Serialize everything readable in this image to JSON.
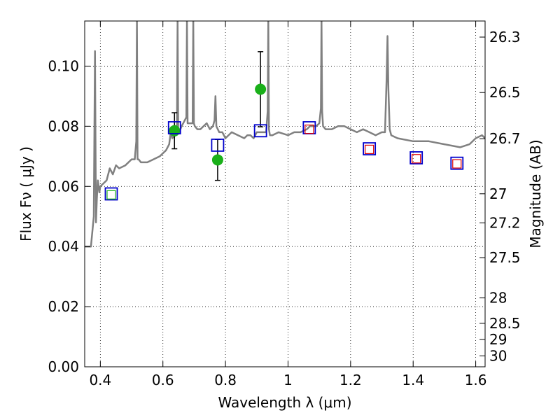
{
  "chart_data": {
    "type": "scatter",
    "xlabel": "Wavelength  λ (μm)",
    "ylabel": "Flux  Fν  ( μJy )",
    "y2label": "Magnitude (AB)",
    "xlim": [
      0.35,
      1.63
    ],
    "ylim": [
      0.0,
      0.115
    ],
    "grid": true,
    "x_ticks": [
      0.4,
      0.6,
      0.8,
      1.0,
      1.2,
      1.4,
      1.6
    ],
    "x_tick_labels": [
      "0.4",
      "0.6",
      "0.8",
      "1",
      "1.2",
      "1.4",
      "1.6"
    ],
    "y_ticks": [
      0.0,
      0.02,
      0.04,
      0.06,
      0.08,
      0.1
    ],
    "y_tick_labels": [
      "0.00",
      "0.02",
      "0.04",
      "0.06",
      "0.08",
      "0.10"
    ],
    "mag_ticks": [
      26.3,
      26.5,
      26.7,
      27,
      27.2,
      27.5,
      28,
      28.5,
      29,
      30
    ],
    "mag_tick_labels": [
      "26.3",
      "26.5",
      "26.7",
      "27",
      "27.2",
      "27.5",
      "28",
      "28.5",
      "29",
      "30"
    ],
    "series": [
      {
        "kind": "line",
        "color": "#808080",
        "x": [
          0.35,
          0.37,
          0.379,
          0.383,
          0.386,
          0.389,
          0.392,
          0.397,
          0.4,
          0.41,
          0.42,
          0.43,
          0.44,
          0.45,
          0.46,
          0.48,
          0.5,
          0.51,
          0.515,
          0.517,
          0.519,
          0.522,
          0.53,
          0.55,
          0.57,
          0.59,
          0.6,
          0.61,
          0.62,
          0.625,
          0.63,
          0.64,
          0.645,
          0.647,
          0.649,
          0.652,
          0.66,
          0.67,
          0.675,
          0.677,
          0.679,
          0.682,
          0.69,
          0.695,
          0.697,
          0.699,
          0.702,
          0.71,
          0.72,
          0.73,
          0.74,
          0.75,
          0.76,
          0.765,
          0.768,
          0.771,
          0.78,
          0.79,
          0.8,
          0.82,
          0.84,
          0.86,
          0.87,
          0.88,
          0.89,
          0.9,
          0.92,
          0.93,
          0.935,
          0.937,
          0.939,
          0.942,
          0.95,
          0.97,
          1.0,
          1.02,
          1.04,
          1.06,
          1.07,
          1.08,
          1.09,
          1.1,
          1.105,
          1.107,
          1.109,
          1.112,
          1.12,
          1.14,
          1.16,
          1.18,
          1.2,
          1.22,
          1.24,
          1.26,
          1.28,
          1.3,
          1.31,
          1.315,
          1.318,
          1.321,
          1.325,
          1.33,
          1.35,
          1.4,
          1.45,
          1.5,
          1.55,
          1.58,
          1.6,
          1.62,
          1.63
        ],
        "y": [
          0.04,
          0.04,
          0.05,
          0.105,
          0.048,
          0.056,
          0.062,
          0.058,
          0.06,
          0.061,
          0.062,
          0.066,
          0.064,
          0.067,
          0.066,
          0.067,
          0.069,
          0.069,
          0.075,
          0.115,
          0.069,
          0.069,
          0.068,
          0.068,
          0.069,
          0.07,
          0.071,
          0.072,
          0.074,
          0.078,
          0.076,
          0.077,
          0.08,
          0.115,
          0.078,
          0.078,
          0.08,
          0.082,
          0.083,
          0.115,
          0.081,
          0.081,
          0.081,
          0.081,
          0.115,
          0.081,
          0.08,
          0.079,
          0.079,
          0.08,
          0.081,
          0.079,
          0.08,
          0.082,
          0.09,
          0.08,
          0.078,
          0.078,
          0.076,
          0.078,
          0.077,
          0.076,
          0.077,
          0.077,
          0.076,
          0.078,
          0.078,
          0.078,
          0.085,
          0.115,
          0.079,
          0.077,
          0.077,
          0.078,
          0.077,
          0.078,
          0.078,
          0.079,
          0.08,
          0.08,
          0.08,
          0.081,
          0.086,
          0.115,
          0.085,
          0.08,
          0.079,
          0.079,
          0.08,
          0.08,
          0.079,
          0.078,
          0.079,
          0.078,
          0.077,
          0.078,
          0.078,
          0.095,
          0.11,
          0.092,
          0.079,
          0.077,
          0.076,
          0.075,
          0.075,
          0.074,
          0.073,
          0.074,
          0.076,
          0.077,
          0.076
        ]
      },
      {
        "kind": "points",
        "marker": "circle",
        "color": "#1ab01a",
        "x": [
          0.637,
          0.775,
          0.912
        ],
        "y": [
          0.0785,
          0.0688,
          0.0923
        ],
        "yerr": [
          0.006,
          0.0068,
          0.0125
        ]
      },
      {
        "kind": "points",
        "marker": "square-open",
        "color": "#0000cc",
        "x": [
          0.435,
          0.637,
          0.775,
          0.912,
          1.068,
          1.26,
          1.41,
          1.54
        ],
        "y": [
          0.0575,
          0.0795,
          0.0737,
          0.0785,
          0.0795,
          0.0725,
          0.0695,
          0.0677
        ]
      },
      {
        "kind": "points",
        "marker": "square-open",
        "color": "#dd0000",
        "x": [
          1.068,
          1.26,
          1.41,
          1.54
        ],
        "y": [
          0.079,
          0.0723,
          0.0692,
          0.0675
        ]
      },
      {
        "kind": "points",
        "marker": "square-open",
        "color": "#1ab01a",
        "x": [
          0.435
        ],
        "y": [
          0.0572
        ]
      }
    ]
  }
}
